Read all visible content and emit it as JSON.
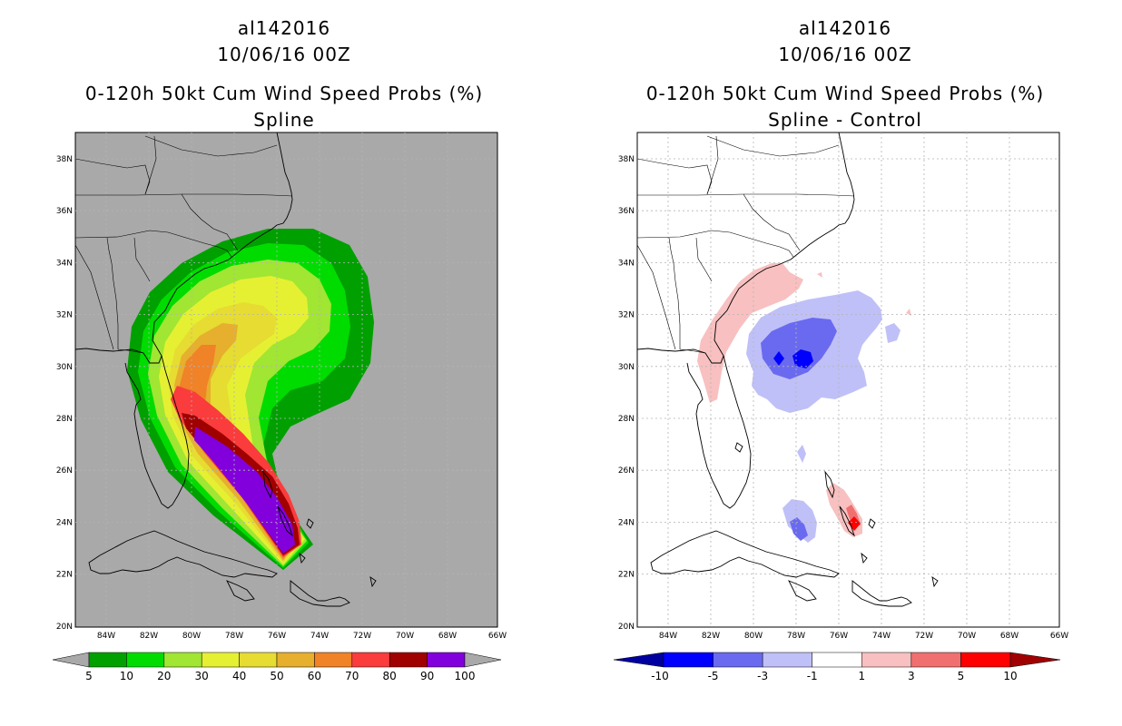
{
  "panels": [
    {
      "storm_id": "al142016",
      "datetime": "10/06/16 00Z",
      "product": "0-120h 50kt Cum Wind Speed Probs (%)",
      "variant": "Spline",
      "background": "#a9a9a9",
      "colorbar": {
        "labels": [
          "5",
          "10",
          "20",
          "30",
          "40",
          "50",
          "60",
          "70",
          "80",
          "90",
          "100"
        ],
        "colors": [
          "#00a000",
          "#00dc00",
          "#a0e632",
          "#e6f032",
          "#e6dc32",
          "#e6af2d",
          "#f08228",
          "#fa3c3c",
          "#a00000",
          "#8200dc"
        ],
        "end_colors": [
          "#a9a9a9",
          "#a9a9a9"
        ]
      }
    },
    {
      "storm_id": "al142016",
      "datetime": "10/06/16 00Z",
      "product": "0-120h 50kt Cum Wind Speed Probs (%)",
      "variant": "Spline - Control",
      "background": "#ffffff",
      "colorbar": {
        "labels": [
          "-10",
          "-5",
          "-3",
          "-1",
          "1",
          "3",
          "5",
          "10"
        ],
        "colors": [
          "#0000ff",
          "#6a6af0",
          "#c0c0f8",
          "#ffffff",
          "#f8c0c0",
          "#f07070",
          "#ff0000"
        ],
        "end_colors": [
          "#0000a0",
          "#a00000"
        ]
      }
    }
  ],
  "map": {
    "lat_labels": [
      "38N",
      "36N",
      "34N",
      "32N",
      "30N",
      "28N",
      "26N",
      "24N",
      "22N",
      "20N"
    ],
    "lon_labels": [
      "84W",
      "82W",
      "80W",
      "78W",
      "76W",
      "74W",
      "72W",
      "70W",
      "68W",
      "66W"
    ]
  }
}
